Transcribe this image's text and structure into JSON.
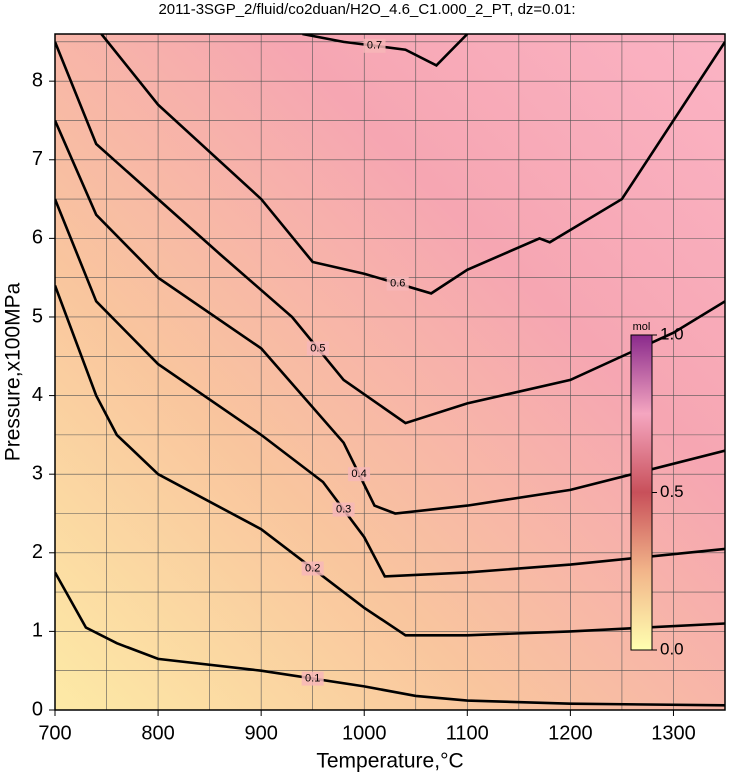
{
  "chart_data": {
    "type": "contour",
    "title": "2011-3SGP_2/fluid/co2duan/H2O_4.6_C1.000_2_PT, dz=0.01:",
    "x_label": "Temperature,°C",
    "y_label": "Pressure,x100MPa",
    "xlim": [
      700,
      1350
    ],
    "ylim": [
      0,
      8.6
    ],
    "xticks": [
      700,
      800,
      900,
      1000,
      1100,
      1200,
      1300
    ],
    "yticks": [
      0,
      1,
      2,
      3,
      4,
      5,
      6,
      7,
      8
    ],
    "xminorticks": [
      750,
      850,
      950,
      1050,
      1150,
      1250
    ],
    "yminorticks": [
      0.5,
      1.5,
      2.5,
      3.5,
      4.5,
      5.5,
      6.5,
      7.5,
      8.5
    ],
    "grid": true,
    "contour_color": "#000000",
    "contours": [
      {
        "level": 0.1,
        "x": [
          700,
          730,
          760,
          800,
          900,
          1000,
          1050,
          1100,
          1200,
          1350
        ],
        "y": [
          1.75,
          1.05,
          0.85,
          0.65,
          0.5,
          0.3,
          0.18,
          0.12,
          0.08,
          0.06
        ]
      },
      {
        "level": 0.2,
        "x": [
          700,
          740,
          760,
          800,
          900,
          1000,
          1040,
          1100,
          1200,
          1350
        ],
        "y": [
          5.4,
          4.0,
          3.5,
          3.0,
          2.3,
          1.3,
          0.95,
          0.95,
          1.0,
          1.1
        ]
      },
      {
        "level": 0.3,
        "x": [
          700,
          740,
          800,
          900,
          960,
          1000,
          1020,
          1100,
          1200,
          1350
        ],
        "y": [
          6.5,
          5.2,
          4.4,
          3.5,
          2.9,
          2.2,
          1.7,
          1.75,
          1.85,
          2.05
        ]
      },
      {
        "level": 0.4,
        "x": [
          700,
          740,
          800,
          900,
          980,
          1010,
          1030,
          1100,
          1200,
          1350
        ],
        "y": [
          7.5,
          6.3,
          5.5,
          4.6,
          3.4,
          2.6,
          2.5,
          2.6,
          2.8,
          3.3
        ]
      },
      {
        "level": 0.5,
        "x": [
          700,
          740,
          800,
          860,
          930,
          980,
          1040,
          1100,
          1200,
          1300,
          1350
        ],
        "y": [
          8.5,
          7.2,
          6.5,
          5.8,
          5.0,
          4.2,
          3.65,
          3.9,
          4.2,
          4.8,
          5.2
        ]
      },
      {
        "level": 0.6,
        "x": [
          745,
          800,
          900,
          950,
          1000,
          1065,
          1100,
          1170,
          1180,
          1250,
          1350
        ],
        "y": [
          8.6,
          7.7,
          6.5,
          5.7,
          5.55,
          5.3,
          5.6,
          6.0,
          5.95,
          6.5,
          8.5
        ]
      },
      {
        "level": 0.7,
        "x": [
          940,
          980,
          1040,
          1070,
          1100
        ],
        "y": [
          8.6,
          8.5,
          8.4,
          8.2,
          8.6
        ]
      }
    ],
    "background_colors": [
      "#fdeaa6",
      "#f9c59e",
      "#f6a6b2",
      "#fbb3c4"
    ],
    "colorbar": {
      "label": "mol",
      "lim": [
        0,
        1
      ],
      "ticks": [
        {
          "value": 0,
          "label": "0.0"
        },
        {
          "value": 0.5,
          "label": "0.5"
        },
        {
          "value": 1,
          "label": "1.0"
        }
      ],
      "colors": [
        "#ffffb0",
        "#f2b58a",
        "#c8505a",
        "#f5a6c0",
        "#8a2a8c"
      ]
    }
  }
}
